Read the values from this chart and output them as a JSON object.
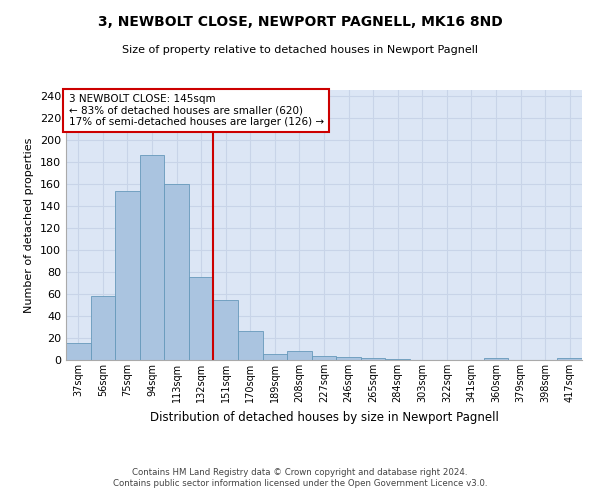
{
  "title": "3, NEWBOLT CLOSE, NEWPORT PAGNELL, MK16 8ND",
  "subtitle": "Size of property relative to detached houses in Newport Pagnell",
  "xlabel": "Distribution of detached houses by size in Newport Pagnell",
  "ylabel": "Number of detached properties",
  "bar_values": [
    15,
    58,
    153,
    186,
    160,
    75,
    54,
    26,
    5,
    8,
    4,
    3,
    2,
    1,
    0,
    0,
    0,
    2,
    0,
    0,
    2
  ],
  "bar_labels": [
    "37sqm",
    "56sqm",
    "75sqm",
    "94sqm",
    "113sqm",
    "132sqm",
    "151sqm",
    "170sqm",
    "189sqm",
    "208sqm",
    "227sqm",
    "246sqm",
    "265sqm",
    "284sqm",
    "303sqm",
    "322sqm",
    "341sqm",
    "360sqm",
    "379sqm",
    "398sqm",
    "417sqm"
  ],
  "bar_color": "#aac4e0",
  "bar_edge_color": "#6699bb",
  "property_line_x": 6,
  "property_label": "3 NEWBOLT CLOSE: 145sqm",
  "annotation_line1": "← 83% of detached houses are smaller (620)",
  "annotation_line2": "17% of semi-detached houses are larger (126) →",
  "annotation_box_color": "#ffffff",
  "annotation_box_edge_color": "#cc0000",
  "red_line_color": "#cc0000",
  "ylim": [
    0,
    245
  ],
  "yticks": [
    0,
    20,
    40,
    60,
    80,
    100,
    120,
    140,
    160,
    180,
    200,
    220,
    240
  ],
  "grid_color": "#c8d4e8",
  "background_color": "#dce6f5",
  "footer_line1": "Contains HM Land Registry data © Crown copyright and database right 2024.",
  "footer_line2": "Contains public sector information licensed under the Open Government Licence v3.0."
}
